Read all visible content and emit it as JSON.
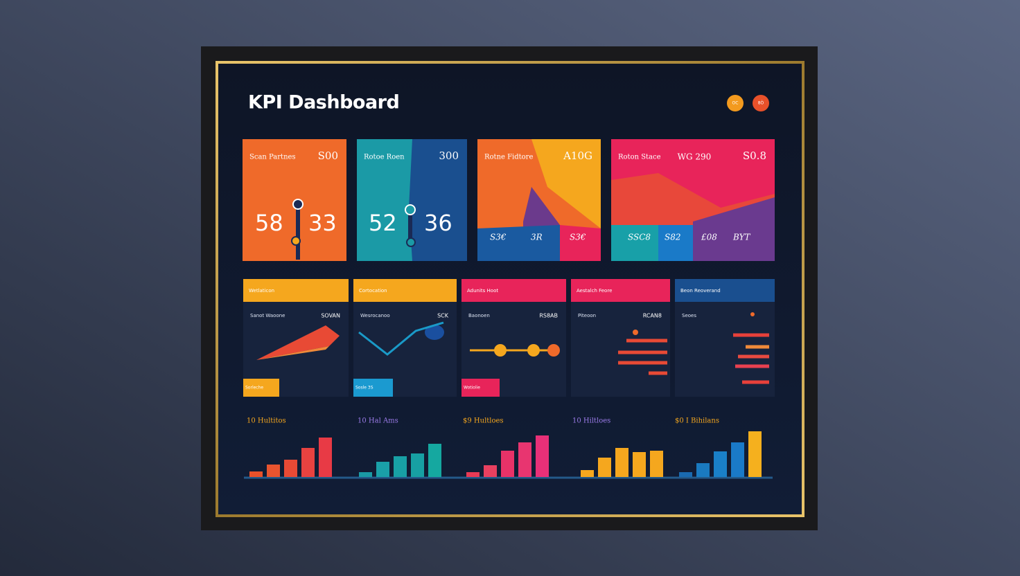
{
  "header": {
    "title": "KPI Dashboard",
    "buttons": [
      "OC",
      "8Ò"
    ]
  },
  "kpi_cards": [
    {
      "label": "Scan Partnes",
      "value": "S00",
      "numbers": [
        "58",
        "33"
      ]
    },
    {
      "label": "Rotoe Roen",
      "value": "300",
      "numbers": [
        "52",
        "36"
      ]
    },
    {
      "label": "Rotne Fidtore",
      "value": "A10G",
      "small_values": [
        "S3€",
        "3R",
        "S3€"
      ]
    },
    {
      "label": "Roton Stace",
      "extra": "WG 290",
      "value": "S0.8",
      "small_values": [
        "SSC8",
        "S82",
        "£08",
        "BYT"
      ]
    }
  ],
  "panels": [
    {
      "header": "Wetlaticon",
      "subtitle": "Sanot Waoone",
      "value": "SOVAN",
      "chip": "Sorleche"
    },
    {
      "header": "Cortocation",
      "subtitle": "Wesrocanoo",
      "value": "SCK",
      "chip": "Sosle 3S"
    },
    {
      "header": "Adunits Hoot",
      "subtitle": "Baonoen",
      "value": "RS8AB",
      "chip": "Wotiolie"
    },
    {
      "header": "Aestalch Feore",
      "subtitle": "Piteoon",
      "value": "RCAN8"
    },
    {
      "header": "Beon Reoverand",
      "subtitle": "Seoes"
    }
  ],
  "chart_data": [
    {
      "type": "bar",
      "title": "10 Hultitos",
      "values": [
        8,
        18,
        25,
        42,
        57
      ],
      "colors": [
        "#e8512a",
        "#e8542f",
        "#e84a35",
        "#e84240",
        "#e83a45"
      ]
    },
    {
      "type": "bar",
      "title": "10 Hal Ams",
      "values": [
        7,
        22,
        30,
        34,
        48
      ],
      "colors": [
        "#1a9aa5",
        "#1aa0a8",
        "#18a0a5",
        "#17a0a3",
        "#15a8a0"
      ]
    },
    {
      "type": "bar",
      "title": "$9 Hultloes",
      "values": [
        7,
        17,
        38,
        50,
        60
      ],
      "colors": [
        "#e83a55",
        "#e84060",
        "#e83268",
        "#e83570",
        "#e83078"
      ]
    },
    {
      "type": "bar",
      "title": "10 Hiltloes",
      "values": [
        10,
        28,
        42,
        36,
        38
      ],
      "colors": [
        "#f5a71e",
        "#f5a71e",
        "#f5a71e",
        "#f5a71e",
        "#f5a71e"
      ]
    },
    {
      "type": "bar",
      "title": "$0 I Bihilans",
      "values": [
        7,
        20,
        37,
        50,
        66
      ],
      "colors": [
        "#1a6ab0",
        "#1a7ac0",
        "#1a80c8",
        "#1a7ac8",
        "#f5b01e"
      ]
    },
    {
      "type": "line",
      "values": [
        32,
        0,
        34,
        46
      ],
      "color": "#1a9ac8"
    },
    {
      "type": "hbar",
      "values": [
        59,
        71,
        71,
        27
      ],
      "colors": [
        "#e84a35",
        "#e84a35",
        "#e84a35",
        "#e84a35"
      ]
    },
    {
      "type": "hbar",
      "values": [
        52,
        34,
        45,
        49,
        39
      ],
      "colors": [
        "#e8403a",
        "#f08a3a",
        "#e84a40",
        "#e84050",
        "#e8403a"
      ]
    }
  ]
}
